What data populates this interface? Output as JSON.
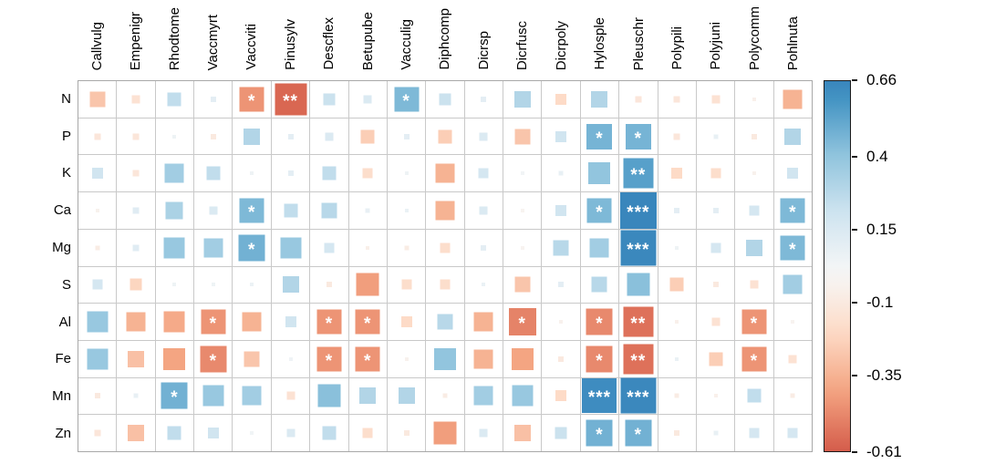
{
  "chart_data": {
    "type": "heatmap",
    "subtype": "correlation-matrix",
    "title": "",
    "encoding": "square size proportional to |correlation|; color diverging red-negative to blue-positive; stars mark significance",
    "columns": [
      "Callvulg",
      "Empenigr",
      "Rhodtome",
      "Vaccmyrt",
      "Vaccviti",
      "Pinusylv",
      "Descflex",
      "Betupube",
      "Vacculig",
      "Diphcomp",
      "Dicrsp",
      "Dicrfusc",
      "Dicrpoly",
      "Hylosple",
      "Pleuschr",
      "Polypili",
      "Polyjuni",
      "Polycomm",
      "Pohlnuta"
    ],
    "rows": [
      "N",
      "P",
      "K",
      "Ca",
      "Mg",
      "S",
      "Al",
      "Fe",
      "Mn",
      "Zn"
    ],
    "matrix": [
      [
        -0.28,
        -0.15,
        0.25,
        0.1,
        -0.45,
        -0.58,
        0.22,
        0.15,
        0.45,
        0.22,
        0.1,
        0.3,
        -0.2,
        0.3,
        -0.12,
        -0.12,
        -0.15,
        -0.05,
        -0.35
      ],
      [
        -0.12,
        -0.12,
        0.05,
        -0.1,
        0.3,
        0.1,
        0.15,
        -0.25,
        0.1,
        -0.25,
        0.15,
        -0.28,
        0.2,
        0.47,
        0.47,
        -0.12,
        0.08,
        -0.1,
        0.3
      ],
      [
        0.2,
        -0.12,
        0.35,
        0.25,
        0.05,
        0.1,
        0.25,
        -0.18,
        0.05,
        -0.35,
        0.18,
        0.03,
        0.08,
        0.4,
        0.55,
        -0.2,
        -0.18,
        -0.04,
        0.2
      ],
      [
        -0.04,
        0.12,
        0.32,
        0.15,
        0.45,
        0.25,
        0.28,
        0.08,
        0.07,
        -0.35,
        0.15,
        -0.03,
        0.2,
        0.45,
        0.66,
        0.1,
        0.1,
        0.18,
        0.45
      ],
      [
        -0.08,
        0.12,
        0.38,
        0.35,
        0.48,
        0.38,
        0.18,
        -0.06,
        -0.08,
        -0.18,
        0.1,
        -0.03,
        0.28,
        0.35,
        0.65,
        0.05,
        0.18,
        0.3,
        0.45
      ],
      [
        0.18,
        -0.22,
        0.05,
        0.05,
        0.06,
        0.3,
        -0.1,
        -0.42,
        -0.18,
        -0.18,
        0.07,
        -0.28,
        0.1,
        0.28,
        0.42,
        -0.25,
        -0.1,
        -0.15,
        0.35
      ],
      [
        0.38,
        -0.35,
        -0.38,
        -0.45,
        -0.35,
        0.2,
        -0.45,
        -0.45,
        -0.2,
        0.28,
        -0.35,
        -0.5,
        -0.04,
        -0.48,
        -0.55,
        -0.05,
        -0.15,
        -0.45,
        -0.03
      ],
      [
        0.38,
        -0.3,
        -0.4,
        -0.48,
        -0.28,
        0.04,
        -0.45,
        -0.45,
        -0.04,
        0.4,
        -0.35,
        -0.4,
        -0.1,
        -0.48,
        -0.55,
        0.07,
        -0.25,
        -0.45,
        -0.15
      ],
      [
        -0.1,
        0.08,
        0.48,
        0.38,
        0.35,
        -0.15,
        0.42,
        0.3,
        0.3,
        -0.08,
        0.35,
        0.38,
        -0.2,
        0.63,
        0.65,
        -0.08,
        -0.05,
        0.25,
        -0.08
      ],
      [
        -0.12,
        -0.3,
        0.25,
        0.2,
        0.03,
        0.15,
        0.25,
        -0.18,
        -0.1,
        -0.42,
        0.15,
        -0.3,
        0.22,
        0.48,
        0.48,
        -0.1,
        0.08,
        0.18,
        0.18
      ]
    ],
    "significance": [
      [
        "",
        "",
        "",
        "",
        "*",
        "**",
        "",
        "",
        "*",
        "",
        "",
        "",
        "",
        "",
        "",
        "",
        "",
        "",
        ""
      ],
      [
        "",
        "",
        "",
        "",
        "",
        "",
        "",
        "",
        "",
        "",
        "",
        "",
        "",
        "*",
        "*",
        "",
        "",
        "",
        ""
      ],
      [
        "",
        "",
        "",
        "",
        "",
        "",
        "",
        "",
        "",
        "",
        "",
        "",
        "",
        "",
        "**",
        "",
        "",
        "",
        ""
      ],
      [
        "",
        "",
        "",
        "",
        "*",
        "",
        "",
        "",
        "",
        "",
        "",
        "",
        "",
        "*",
        "***",
        "",
        "",
        "",
        "*"
      ],
      [
        "",
        "",
        "",
        "",
        "*",
        "",
        "",
        "",
        "",
        "",
        "",
        "",
        "",
        "",
        "***",
        "",
        "",
        "",
        "*"
      ],
      [
        "",
        "",
        "",
        "",
        "",
        "",
        "",
        "",
        "",
        "",
        "",
        "",
        "",
        "",
        "",
        "",
        "",
        "",
        ""
      ],
      [
        "",
        "",
        "",
        "*",
        "",
        "",
        "*",
        "*",
        "",
        "",
        "",
        "*",
        "",
        "*",
        "**",
        "",
        "",
        "*",
        ""
      ],
      [
        "",
        "",
        "",
        "*",
        "",
        "",
        "*",
        "*",
        "",
        "",
        "",
        "",
        "",
        "*",
        "**",
        "",
        "",
        "*",
        ""
      ],
      [
        "",
        "",
        "*",
        "",
        "",
        "",
        "",
        "",
        "",
        "",
        "",
        "",
        "",
        "***",
        "***",
        "",
        "",
        "",
        ""
      ],
      [
        "",
        "",
        "",
        "",
        "",
        "",
        "",
        "",
        "",
        "",
        "",
        "",
        "",
        "*",
        "*",
        "",
        "",
        "",
        ""
      ]
    ],
    "colorbar": {
      "position": "right",
      "tick_labels": [
        "0.66",
        "0.4",
        "0.15",
        "-0.1",
        "-0.35",
        "-0.61"
      ],
      "tick_values": [
        0.66,
        0.4,
        0.15,
        -0.1,
        -0.35,
        -0.61
      ],
      "max": 0.66,
      "min": -0.61
    },
    "grid": true,
    "xlabel": "",
    "ylabel": ""
  },
  "colors": {
    "positive_max": "#3986bc",
    "negative_min": "#d6604d",
    "neutral": "#f7f7f7",
    "grid_line": "#c9c9c9",
    "grid_border": "#a8a8a8",
    "star": "#ffffff",
    "label_text": "#000000",
    "background": "#ffffff"
  }
}
